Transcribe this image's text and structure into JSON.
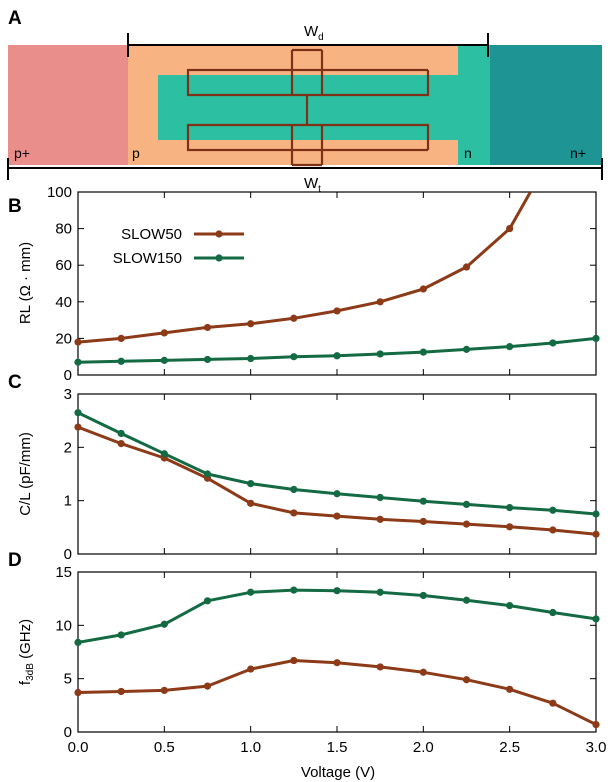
{
  "figure": {
    "panel_labels": [
      "A",
      "B",
      "C",
      "D"
    ],
    "diagram": {
      "wd_label": "W",
      "wd_sub": "d",
      "wt_label": "W",
      "wt_sub": "t",
      "regions": [
        "p+",
        "p",
        "n",
        "n+"
      ],
      "colors": {
        "p_plus": "#EA8E8C",
        "p": "#F7B482",
        "n": "#2CBFA2",
        "n_plus": "#1E9494",
        "electrode": "#7E3116"
      }
    },
    "xlabel": "Voltage (V)",
    "xticks": [
      "0.0",
      "0.5",
      "1.0",
      "1.5",
      "2.0",
      "2.5",
      "3.0"
    ]
  },
  "chart_data": [
    {
      "panel": "B",
      "type": "line",
      "ylabel": "RL (Ω · mm)",
      "ylim": [
        0,
        100
      ],
      "yticks": [
        "0",
        "20",
        "40",
        "60",
        "80",
        "100"
      ],
      "legend_position": "top-left",
      "x": [
        0.0,
        0.25,
        0.5,
        0.75,
        1.0,
        1.25,
        1.5,
        1.75,
        2.0,
        2.25,
        2.5
      ],
      "series": [
        {
          "name": "SLOW50",
          "color": "#8C3A17",
          "x": [
            0.0,
            0.25,
            0.5,
            0.75,
            1.0,
            1.25,
            1.5,
            1.75,
            2.0,
            2.25,
            2.5,
            2.62
          ],
          "values": [
            18,
            20,
            23,
            26,
            28,
            31,
            35,
            40,
            47,
            59,
            80,
            100
          ],
          "markers": [
            0,
            1,
            2,
            3,
            4,
            5,
            6,
            7,
            8,
            9,
            10
          ]
        },
        {
          "name": "SLOW150",
          "color": "#136A43",
          "x": [
            0.0,
            0.25,
            0.5,
            0.75,
            1.0,
            1.25,
            1.5,
            1.75,
            2.0,
            2.25,
            2.5,
            2.75,
            3.0
          ],
          "values": [
            7,
            7.5,
            8,
            8.5,
            9,
            10,
            10.5,
            11.5,
            12.5,
            14,
            15.5,
            17.5,
            20
          ]
        }
      ]
    },
    {
      "panel": "C",
      "type": "line",
      "ylabel": "C/L (pF/mm)",
      "ylim": [
        0,
        3
      ],
      "yticks": [
        "0",
        "1",
        "2",
        "3"
      ],
      "series": [
        {
          "name": "SLOW50",
          "color": "#8C3A17",
          "x": [
            0.0,
            0.25,
            0.5,
            0.75,
            1.0,
            1.25,
            1.5,
            1.75,
            2.0,
            2.25,
            2.5,
            2.75,
            3.0
          ],
          "values": [
            2.38,
            2.07,
            1.8,
            1.42,
            0.95,
            0.77,
            0.71,
            0.65,
            0.61,
            0.56,
            0.51,
            0.45,
            0.37
          ]
        },
        {
          "name": "SLOW150",
          "color": "#136A43",
          "x": [
            0.0,
            0.25,
            0.5,
            0.75,
            1.0,
            1.25,
            1.5,
            1.75,
            2.0,
            2.25,
            2.5,
            2.75,
            3.0
          ],
          "values": [
            2.65,
            2.26,
            1.88,
            1.5,
            1.32,
            1.21,
            1.13,
            1.06,
            0.99,
            0.93,
            0.87,
            0.82,
            0.75
          ]
        }
      ]
    },
    {
      "panel": "D",
      "type": "line",
      "ylabel_main": "f",
      "ylabel_sub": "3dB",
      "ylabel_rest": " (GHz)",
      "ylim": [
        0,
        15
      ],
      "yticks": [
        "0",
        "5",
        "10",
        "15"
      ],
      "series": [
        {
          "name": "SLOW50",
          "color": "#8C3A17",
          "x": [
            0.0,
            0.25,
            0.5,
            0.75,
            1.0,
            1.25,
            1.5,
            1.75,
            2.0,
            2.25,
            2.5,
            2.75,
            3.0
          ],
          "values": [
            3.7,
            3.8,
            3.9,
            4.3,
            5.9,
            6.7,
            6.5,
            6.1,
            5.6,
            4.9,
            4.0,
            2.7,
            0.7
          ]
        },
        {
          "name": "SLOW150",
          "color": "#136A43",
          "x": [
            0.0,
            0.25,
            0.5,
            0.75,
            1.0,
            1.25,
            1.5,
            1.75,
            2.0,
            2.25,
            2.5,
            2.75,
            3.0
          ],
          "values": [
            8.4,
            9.1,
            10.1,
            12.3,
            13.1,
            13.3,
            13.25,
            13.1,
            12.8,
            12.35,
            11.85,
            11.2,
            10.6
          ]
        }
      ]
    }
  ]
}
